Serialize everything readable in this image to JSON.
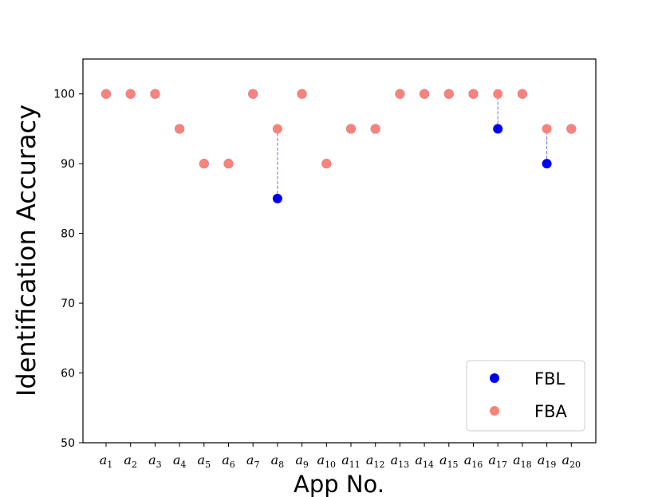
{
  "chart_data": {
    "type": "scatter",
    "xlabel": "App No.",
    "ylabel": "Identification Accuracy",
    "ylim": [
      50,
      105
    ],
    "yticks": [
      50,
      60,
      70,
      80,
      90,
      100
    ],
    "grid": false,
    "legend_placement": "bottom-right",
    "categories": [
      {
        "base": "a",
        "sub": "1"
      },
      {
        "base": "a",
        "sub": "2"
      },
      {
        "base": "a",
        "sub": "3"
      },
      {
        "base": "a",
        "sub": "4"
      },
      {
        "base": "a",
        "sub": "5"
      },
      {
        "base": "a",
        "sub": "6"
      },
      {
        "base": "a",
        "sub": "7"
      },
      {
        "base": "a",
        "sub": "8"
      },
      {
        "base": "a",
        "sub": "9"
      },
      {
        "base": "a",
        "sub": "10"
      },
      {
        "base": "a",
        "sub": "11"
      },
      {
        "base": "a",
        "sub": "12"
      },
      {
        "base": "a",
        "sub": "13"
      },
      {
        "base": "a",
        "sub": "14"
      },
      {
        "base": "a",
        "sub": "15"
      },
      {
        "base": "a",
        "sub": "16"
      },
      {
        "base": "a",
        "sub": "17"
      },
      {
        "base": "a",
        "sub": "18"
      },
      {
        "base": "a",
        "sub": "19"
      },
      {
        "base": "a",
        "sub": "20"
      }
    ],
    "series": [
      {
        "name": "FBL",
        "color": "#0000ee",
        "values": [
          100,
          100,
          100,
          95,
          90,
          90,
          100,
          85,
          100,
          90,
          95,
          95,
          100,
          100,
          100,
          100,
          95,
          100,
          90,
          95
        ]
      },
      {
        "name": "FBA",
        "color": "#f8837a",
        "values": [
          100,
          100,
          100,
          95,
          90,
          90,
          100,
          95,
          100,
          90,
          95,
          95,
          100,
          100,
          100,
          100,
          100,
          100,
          95,
          95
        ]
      }
    ],
    "connector_color": "#6f73f0"
  }
}
